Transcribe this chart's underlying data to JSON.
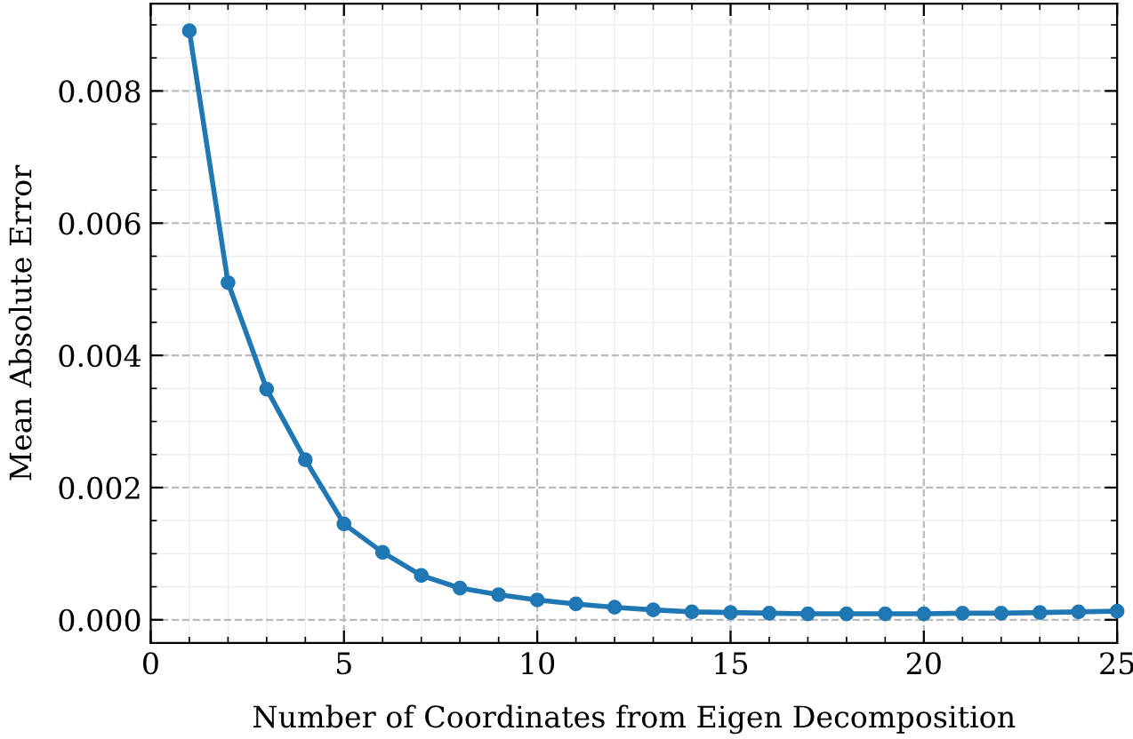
{
  "chart_data": {
    "type": "line",
    "xlabel": "Number of Coordinates from Eigen Decomposition",
    "ylabel": "Mean Absolute Error",
    "x": [
      1,
      2,
      3,
      4,
      5,
      6,
      7,
      8,
      9,
      10,
      11,
      12,
      13,
      14,
      15,
      16,
      17,
      18,
      19,
      20,
      21,
      22,
      23,
      24,
      25
    ],
    "series": [
      {
        "color": "#1f77b4",
        "values": [
          0.00891,
          0.0051,
          0.00349,
          0.00242,
          0.00145,
          0.00102,
          0.00067,
          0.00048,
          0.00038,
          0.0003,
          0.00024,
          0.00019,
          0.00015,
          0.00012,
          0.00011,
          0.0001,
          9e-05,
          9e-05,
          9e-05,
          9e-05,
          0.0001,
          0.0001,
          0.00011,
          0.00012,
          0.00013
        ]
      }
    ],
    "xlim": [
      0,
      25
    ],
    "xticks": [
      0,
      5,
      10,
      15,
      20,
      25
    ],
    "ylim": [
      -0.00035,
      0.00932
    ],
    "yticks": [
      {
        "value": 0,
        "label": "0.000"
      },
      {
        "value": 0.002,
        "label": "0.002"
      },
      {
        "value": 0.004,
        "label": "0.004"
      },
      {
        "value": 0.006,
        "label": "0.006"
      },
      {
        "value": 0.008,
        "label": "0.008"
      }
    ],
    "grid": true,
    "marker": "circle",
    "line_style": "solid"
  }
}
